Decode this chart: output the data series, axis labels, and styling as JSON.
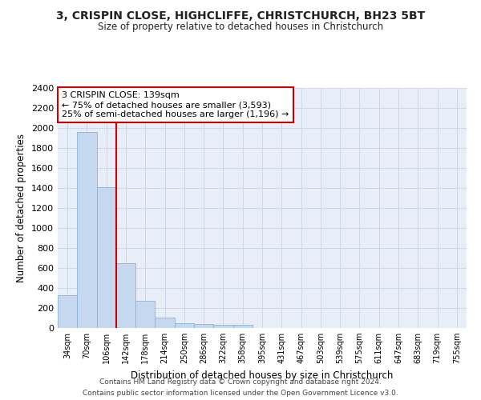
{
  "title_line1": "3, CRISPIN CLOSE, HIGHCLIFFE, CHRISTCHURCH, BH23 5BT",
  "title_line2": "Size of property relative to detached houses in Christchurch",
  "xlabel": "Distribution of detached houses by size in Christchurch",
  "ylabel": "Number of detached properties",
  "categories": [
    "34sqm",
    "70sqm",
    "106sqm",
    "142sqm",
    "178sqm",
    "214sqm",
    "250sqm",
    "286sqm",
    "322sqm",
    "358sqm",
    "395sqm",
    "431sqm",
    "467sqm",
    "503sqm",
    "539sqm",
    "575sqm",
    "611sqm",
    "647sqm",
    "683sqm",
    "719sqm",
    "755sqm"
  ],
  "values": [
    325,
    1960,
    1410,
    650,
    275,
    105,
    50,
    42,
    35,
    30,
    0,
    0,
    0,
    0,
    0,
    0,
    0,
    0,
    0,
    0,
    0
  ],
  "bar_color": "#c5d8ef",
  "bar_edgecolor": "#8ab4d8",
  "vline_color": "#cc0000",
  "annotation_text": "3 CRISPIN CLOSE: 139sqm\n← 75% of detached houses are smaller (3,593)\n25% of semi-detached houses are larger (1,196) →",
  "annotation_box_color": "#ffffff",
  "annotation_box_edgecolor": "#cc0000",
  "ylim": [
    0,
    2400
  ],
  "yticks": [
    0,
    200,
    400,
    600,
    800,
    1000,
    1200,
    1400,
    1600,
    1800,
    2000,
    2200,
    2400
  ],
  "grid_color": "#d0d8e8",
  "background_color": "#e8eef8",
  "footer_line1": "Contains HM Land Registry data © Crown copyright and database right 2024.",
  "footer_line2": "Contains public sector information licensed under the Open Government Licence v3.0."
}
